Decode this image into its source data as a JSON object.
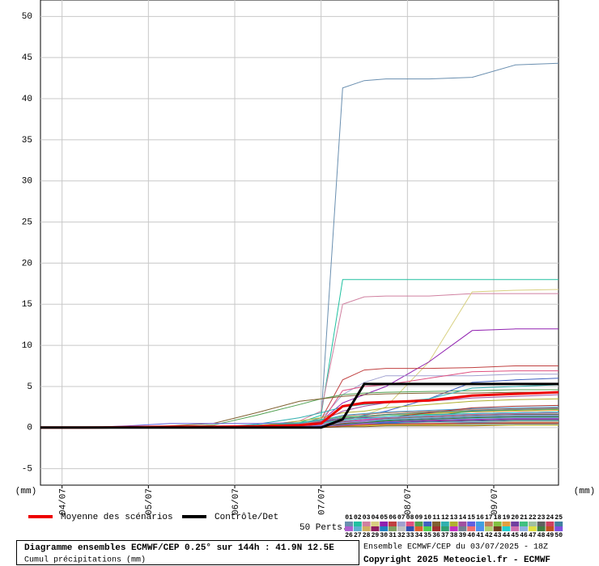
{
  "chart_data": {
    "type": "line",
    "title": "Diagramme ensembles ECMWF/CEP 0.25° sur 144h : 41.9N 12.5E",
    "subtitle": "Cumul précipitations (mm)",
    "run_label": "Ensemble ECMWF/CEP du 03/07/2025 - 18Z",
    "copyright": "Copyright 2025 Meteociel.fr - ECMWF",
    "y_unit_left": "(mm)",
    "y_unit_right": "(mm)",
    "members_label": "50 Perts.",
    "grid": true,
    "xlim": [
      0,
      144
    ],
    "xticks": [
      {
        "value": 6,
        "label": "04/07"
      },
      {
        "value": 30,
        "label": "05/07"
      },
      {
        "value": 54,
        "label": "06/07"
      },
      {
        "value": 78,
        "label": "07/07"
      },
      {
        "value": 102,
        "label": "08/07"
      },
      {
        "value": 126,
        "label": "09/07"
      }
    ],
    "ylim": [
      -7,
      52
    ],
    "yticks": [
      -5,
      0,
      5,
      10,
      15,
      20,
      25,
      30,
      35,
      40,
      45,
      50
    ],
    "x": [
      0,
      12,
      24,
      36,
      48,
      60,
      72,
      78,
      84,
      90,
      96,
      108,
      120,
      132,
      144
    ],
    "series": [
      {
        "name": "Moyenne des scénarios",
        "color": "#ee0000",
        "values": [
          0,
          0,
          0.05,
          0.1,
          0.1,
          0.15,
          0.3,
          0.5,
          2.6,
          3,
          3.1,
          3.3,
          3.9,
          4.1,
          4.3
        ]
      },
      {
        "name": "Contrôle/Det",
        "color": "#000000",
        "values": [
          0,
          0,
          0,
          0,
          0,
          0,
          0,
          0,
          1,
          5.3,
          5.3,
          5.3,
          5.3,
          5.3,
          5.3
        ]
      },
      {
        "name": "01",
        "color": "#6a8fb0",
        "values": [
          0,
          0,
          0,
          0,
          0,
          0.2,
          0.4,
          1.2,
          41.3,
          42.2,
          42.4,
          42.4,
          42.6,
          44.1,
          44.3
        ]
      },
      {
        "name": "02",
        "color": "#20c0a0",
        "values": [
          0,
          0,
          0,
          0,
          0,
          0.3,
          0.6,
          1.5,
          18,
          18,
          18,
          18,
          18,
          18,
          18
        ]
      },
      {
        "name": "03",
        "color": "#d080a0",
        "values": [
          0,
          0,
          0,
          0,
          0,
          0.2,
          0.8,
          2.0,
          15,
          15.9,
          16,
          16,
          16.3,
          16.3,
          16.3
        ]
      },
      {
        "name": "04",
        "color": "#d8d080",
        "values": [
          0,
          0,
          0,
          0,
          0,
          0,
          0.1,
          0.3,
          0.8,
          1.5,
          2.5,
          8,
          16.5,
          16.7,
          16.8
        ]
      },
      {
        "name": "05",
        "color": "#9020b0",
        "values": [
          0,
          0,
          0,
          0,
          0,
          0.1,
          0.3,
          0.8,
          3,
          4,
          5,
          8,
          11.8,
          12,
          12
        ]
      },
      {
        "name": "06",
        "color": "#c04040",
        "values": [
          0,
          0,
          0,
          0,
          0,
          0.2,
          0.5,
          1,
          5.8,
          7,
          7.2,
          7.2,
          7.3,
          7.5,
          7.5
        ]
      },
      {
        "name": "07",
        "color": "#a0a0d0",
        "values": [
          0,
          0,
          0,
          0,
          0,
          0.2,
          0.5,
          1,
          4,
          5.5,
          6.3,
          6.3,
          6.3,
          6.5,
          6.5
        ]
      },
      {
        "name": "08",
        "color": "#e05080",
        "values": [
          0,
          0,
          0,
          0,
          0,
          0.1,
          0.3,
          0.6,
          4.5,
          5,
          5.2,
          6,
          6.8,
          6.9,
          6.9
        ]
      },
      {
        "name": "09",
        "color": "#50a050",
        "values": [
          0,
          0,
          0,
          0.1,
          0.3,
          1.5,
          2.8,
          3.5,
          4,
          4.2,
          4.3,
          4.4,
          4.5,
          4.6,
          4.6
        ]
      },
      {
        "name": "10",
        "color": "#4060c0",
        "values": [
          0,
          0,
          0,
          0,
          0,
          0.1,
          0.2,
          0.4,
          1,
          1.5,
          2,
          3.5,
          5.5,
          5.8,
          6
        ]
      },
      {
        "name": "11",
        "color": "#806030",
        "values": [
          0,
          0,
          0,
          0.2,
          0.5,
          1.8,
          3.2,
          3.5,
          3.8,
          4,
          4.1,
          4.2,
          4.2,
          4.3,
          4.3
        ]
      },
      {
        "name": "12",
        "color": "#30b0b0",
        "values": [
          0,
          0,
          0,
          0,
          0,
          0.4,
          1.2,
          1.8,
          2.5,
          2.8,
          3,
          3.5,
          4.8,
          5,
          5.2
        ]
      },
      {
        "name": "13",
        "color": "#b0b030",
        "values": [
          0,
          0,
          0,
          0,
          0,
          0.2,
          0.8,
          1.2,
          1.8,
          2,
          2.4,
          2.8,
          3.2,
          3.4,
          3.5
        ]
      },
      {
        "name": "14",
        "color": "#a050a0",
        "values": [
          0,
          0,
          0,
          0,
          0,
          0.1,
          0.3,
          0.8,
          2,
          2.6,
          3,
          3.2,
          3.6,
          3.8,
          4
        ]
      },
      {
        "name": "15",
        "color": "#6060e0",
        "values": [
          0,
          0,
          0.2,
          0.5,
          0.5,
          0.5,
          0.6,
          0.8,
          1.2,
          1.4,
          1.6,
          1.8,
          2,
          2.2,
          2.4
        ]
      },
      {
        "name": "16",
        "color": "#40a0e0",
        "values": [
          0,
          0,
          0,
          0,
          0,
          0.2,
          0.5,
          0.9,
          1.5,
          1.7,
          1.9,
          2.1,
          2.3,
          2.4,
          2.5
        ]
      },
      {
        "name": "17",
        "color": "#c08060",
        "values": [
          0,
          0,
          0,
          0,
          0,
          0.1,
          0.4,
          0.8,
          1.4,
          1.6,
          1.8,
          2,
          2.2,
          2.3,
          2.4
        ]
      },
      {
        "name": "18",
        "color": "#80c040",
        "values": [
          0,
          0,
          0,
          0,
          0,
          0.1,
          0.3,
          0.6,
          1.2,
          1.4,
          1.6,
          1.8,
          2,
          2.1,
          2.2
        ]
      },
      {
        "name": "19",
        "color": "#e0a040",
        "values": [
          0,
          0,
          0,
          0,
          0,
          0.1,
          0.2,
          0.5,
          1,
          1.3,
          1.5,
          1.7,
          1.9,
          2,
          2.1
        ]
      },
      {
        "name": "20",
        "color": "#7040a0",
        "values": [
          0,
          0,
          0,
          0,
          0,
          0.1,
          0.3,
          0.7,
          1.1,
          1.2,
          1.3,
          1.5,
          1.7,
          1.8,
          1.9
        ]
      },
      {
        "name": "21",
        "color": "#40c080",
        "values": [
          0,
          0,
          0,
          0,
          0,
          0.2,
          0.6,
          1,
          1.3,
          1.4,
          1.5,
          1.6,
          1.7,
          1.8,
          1.8
        ]
      },
      {
        "name": "22",
        "color": "#a0c0a0",
        "values": [
          0,
          0,
          0,
          0,
          0,
          0,
          0.2,
          0.4,
          0.8,
          1,
          1.2,
          1.4,
          1.6,
          1.7,
          1.7
        ]
      },
      {
        "name": "23",
        "color": "#606060",
        "values": [
          0,
          0,
          0,
          0,
          0,
          0.1,
          0.2,
          0.4,
          0.7,
          0.9,
          1.1,
          1.3,
          1.5,
          1.6,
          1.6
        ]
      },
      {
        "name": "24",
        "color": "#d04060",
        "values": [
          0,
          0,
          0,
          0,
          0,
          0,
          0.1,
          0.3,
          0.6,
          0.8,
          1,
          1.2,
          1.4,
          1.5,
          1.5
        ]
      },
      {
        "name": "25",
        "color": "#4080a0",
        "values": [
          0,
          0,
          0,
          0,
          0,
          0.1,
          0.2,
          0.4,
          0.6,
          0.8,
          0.9,
          1.1,
          1.3,
          1.4,
          1.4
        ]
      },
      {
        "name": "26",
        "color": "#b060d0",
        "values": [
          0,
          0,
          0,
          0,
          0,
          0,
          0.1,
          0.2,
          0.5,
          0.7,
          0.8,
          1,
          1.2,
          1.3,
          1.3
        ]
      },
      {
        "name": "27",
        "color": "#60b0d0",
        "values": [
          0,
          0,
          0,
          0,
          0,
          0.1,
          0.2,
          0.3,
          0.5,
          0.6,
          0.8,
          0.9,
          1.1,
          1.2,
          1.2
        ]
      },
      {
        "name": "28",
        "color": "#d0b060",
        "values": [
          0,
          0,
          0,
          0,
          0,
          0,
          0.1,
          0.2,
          0.4,
          0.6,
          0.7,
          0.9,
          1,
          1.1,
          1.1
        ]
      },
      {
        "name": "29",
        "color": "#902060",
        "values": [
          0,
          0,
          0,
          0,
          0,
          0.1,
          0.2,
          0.3,
          0.4,
          0.5,
          0.6,
          0.8,
          0.9,
          1,
          1
        ]
      },
      {
        "name": "30",
        "color": "#2080c0",
        "values": [
          0,
          0,
          0,
          0,
          0,
          0,
          0.1,
          0.2,
          0.4,
          0.5,
          0.6,
          0.7,
          0.8,
          0.9,
          0.9
        ]
      },
      {
        "name": "31",
        "color": "#80a060",
        "values": [
          0,
          0,
          0,
          0,
          0,
          0,
          0.1,
          0.2,
          0.3,
          0.4,
          0.5,
          0.6,
          0.7,
          0.8,
          0.8
        ]
      },
      {
        "name": "32",
        "color": "#c0c0c0",
        "values": [
          0,
          0,
          0,
          0,
          0,
          0,
          0,
          0.1,
          0.3,
          0.4,
          0.5,
          0.6,
          0.7,
          0.7,
          0.7
        ]
      },
      {
        "name": "33",
        "color": "#3050b0",
        "values": [
          0,
          0,
          0,
          0,
          0,
          0,
          0.1,
          0.2,
          0.3,
          0.4,
          0.5,
          0.5,
          0.6,
          0.6,
          0.6
        ]
      },
      {
        "name": "34",
        "color": "#e06030",
        "values": [
          0,
          0,
          0,
          0,
          0,
          0,
          0,
          0.1,
          0.2,
          0.3,
          0.4,
          0.5,
          0.5,
          0.6,
          0.6
        ]
      },
      {
        "name": "35",
        "color": "#50d050",
        "values": [
          0,
          0,
          0,
          0,
          0,
          0,
          0,
          0.1,
          0.2,
          0.3,
          0.3,
          0.4,
          0.5,
          0.5,
          0.5
        ]
      },
      {
        "name": "36",
        "color": "#a03030",
        "values": [
          0,
          0,
          0,
          0,
          0,
          0.1,
          0.2,
          0.3,
          0.5,
          0.8,
          1.2,
          1.8,
          2.4,
          2.6,
          2.7
        ]
      },
      {
        "name": "37",
        "color": "#30a070",
        "values": [
          0,
          0,
          0,
          0,
          0,
          0,
          0.1,
          0.2,
          0.4,
          0.6,
          0.9,
          1.4,
          2,
          2.2,
          2.3
        ]
      },
      {
        "name": "38",
        "color": "#c030c0",
        "values": [
          0,
          0,
          0,
          0,
          0,
          0,
          0.1,
          0.3,
          0.6,
          0.9,
          1.2,
          1.5,
          1.7,
          1.8,
          1.9
        ]
      },
      {
        "name": "39",
        "color": "#708090",
        "values": [
          0,
          0,
          0,
          0,
          0,
          0.1,
          0.3,
          0.6,
          1,
          1.3,
          1.6,
          1.9,
          2.1,
          2.2,
          2.3
        ]
      },
      {
        "name": "40",
        "color": "#f07070",
        "values": [
          0,
          0,
          0,
          0,
          0,
          0,
          0.1,
          0.2,
          0.3,
          0.4,
          0.4,
          0.5,
          0.5,
          0.5,
          0.5
        ]
      },
      {
        "name": "41",
        "color": "#5090f0",
        "values": [
          0,
          0,
          0,
          0,
          0,
          0,
          0,
          0.1,
          0.2,
          0.2,
          0.3,
          0.3,
          0.4,
          0.4,
          0.4
        ]
      },
      {
        "name": "42",
        "color": "#b0d070",
        "values": [
          0,
          0,
          0,
          0,
          0,
          0,
          0,
          0.1,
          0.1,
          0.2,
          0.2,
          0.3,
          0.3,
          0.3,
          0.3
        ]
      },
      {
        "name": "43",
        "color": "#704020",
        "values": [
          0,
          0,
          0,
          0,
          0,
          0,
          0,
          0,
          0.1,
          0.1,
          0.2,
          0.2,
          0.2,
          0.3,
          0.3
        ]
      },
      {
        "name": "44",
        "color": "#20d0d0",
        "values": [
          0,
          0,
          0,
          0,
          0,
          0.1,
          0.3,
          0.5,
          0.9,
          1.1,
          1.3,
          1.5,
          1.7,
          1.8,
          1.9
        ]
      },
      {
        "name": "45",
        "color": "#d070b0",
        "values": [
          0,
          0,
          0,
          0,
          0,
          0.1,
          0.2,
          0.4,
          0.8,
          1,
          1.2,
          1.4,
          1.6,
          1.7,
          1.8
        ]
      },
      {
        "name": "46",
        "color": "#90b0e0",
        "values": [
          0,
          0,
          0,
          0,
          0,
          0,
          0.1,
          0.3,
          0.6,
          0.8,
          1,
          1.2,
          1.4,
          1.5,
          1.5
        ]
      },
      {
        "name": "47",
        "color": "#e0e040",
        "values": [
          0,
          0,
          0,
          0,
          0,
          0,
          0,
          0.1,
          0.2,
          0.2,
          0.3,
          0.3,
          0.3,
          0.3,
          0.3
        ]
      },
      {
        "name": "48",
        "color": "#408040",
        "values": [
          0,
          0,
          0,
          0,
          0,
          0,
          0.1,
          0.2,
          0.4,
          0.6,
          0.8,
          1,
          1.2,
          1.3,
          1.3
        ]
      },
      {
        "name": "49",
        "color": "#c05020",
        "values": [
          0,
          0,
          0,
          0,
          0,
          0,
          0,
          0.1,
          0.2,
          0.3,
          0.4,
          0.4,
          0.5,
          0.5,
          0.5
        ]
      },
      {
        "name": "50",
        "color": "#8050e0",
        "values": [
          0,
          0,
          0,
          0,
          0,
          0,
          0.1,
          0.2,
          0.3,
          0.5,
          0.7,
          0.9,
          1,
          1.1,
          1.1
        ]
      }
    ]
  }
}
